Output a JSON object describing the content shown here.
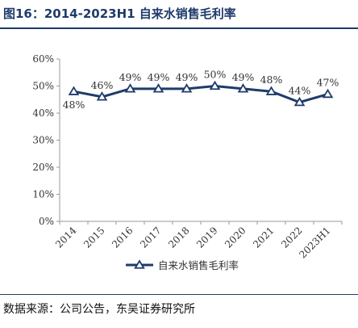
{
  "figure": {
    "title": "图16：2014-2023H1 自来水销售毛利率",
    "source": "数据来源：公司公告，东吴证券研究所"
  },
  "chart_data": {
    "type": "line",
    "categories": [
      "2014",
      "2015",
      "2016",
      "2017",
      "2018",
      "2019",
      "2020",
      "2021",
      "2022",
      "2023H1"
    ],
    "series": [
      {
        "name": "自来水销售毛利率",
        "values": [
          48,
          46,
          49,
          49,
          49,
          50,
          49,
          48,
          44,
          47
        ],
        "labels": [
          "48%",
          "46%",
          "49%",
          "49%",
          "49%",
          "50%",
          "49%",
          "48%",
          "44%",
          "47%"
        ],
        "color": "#1f3b6b",
        "marker": "triangle"
      }
    ],
    "y_ticks": [
      "0%",
      "10%",
      "20%",
      "30%",
      "40%",
      "50%",
      "60%"
    ],
    "ylim": [
      0,
      60
    ],
    "grid": false,
    "legend": "bottom"
  }
}
